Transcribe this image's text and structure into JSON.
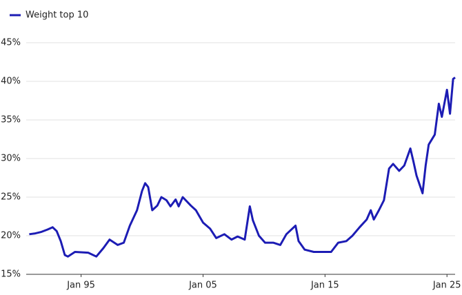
{
  "chart_data": {
    "type": "line",
    "x": [
      "1990-10",
      "1991-04",
      "1991-10",
      "1992-04",
      "1992-09",
      "1993-01",
      "1993-05",
      "1993-09",
      "1993-12",
      "1994-07",
      "1995-08",
      "1996-04",
      "1996-11",
      "1997-05",
      "1998-01",
      "1998-07",
      "1999-01",
      "1999-08",
      "2000-01",
      "2000-04",
      "2000-07",
      "2000-11",
      "2001-04",
      "2001-08",
      "2002-01",
      "2002-05",
      "2002-10",
      "2003-01",
      "2003-05",
      "2004-01",
      "2004-06",
      "2005-01",
      "2005-08",
      "2006-02",
      "2006-10",
      "2007-05",
      "2007-11",
      "2008-06",
      "2008-11",
      "2009-02",
      "2009-08",
      "2010-02",
      "2010-10",
      "2011-05",
      "2011-11",
      "2012-08",
      "2012-11",
      "2013-05",
      "2014-02",
      "2015-01",
      "2015-07",
      "2016-02",
      "2016-10",
      "2017-04",
      "2017-11",
      "2018-06",
      "2018-10",
      "2019-01",
      "2019-06",
      "2019-11",
      "2020-04",
      "2020-08",
      "2021-02",
      "2021-07",
      "2022-01",
      "2022-04",
      "2022-07",
      "2023-01",
      "2023-04",
      "2023-07",
      "2024-01",
      "2024-05",
      "2024-08",
      "2025-01",
      "2025-04",
      "2025-07",
      "2025-09"
    ],
    "series": [
      {
        "name": "Weight top 10",
        "color": "#1c1cb4",
        "values": [
          20.2,
          20.3,
          20.5,
          20.8,
          21.1,
          20.6,
          19.3,
          17.5,
          17.3,
          17.9,
          17.8,
          17.3,
          18.4,
          19.5,
          18.8,
          19.1,
          21.3,
          23.3,
          25.8,
          26.8,
          26.3,
          23.3,
          23.9,
          25.0,
          24.6,
          23.8,
          24.7,
          23.8,
          25.0,
          23.9,
          23.3,
          21.7,
          20.9,
          19.7,
          20.2,
          19.5,
          19.9,
          19.5,
          23.8,
          22.0,
          20.0,
          19.1,
          19.1,
          18.8,
          20.2,
          21.3,
          19.3,
          18.2,
          17.9,
          17.9,
          17.9,
          19.1,
          19.3,
          20.0,
          21.1,
          22.1,
          23.3,
          22.1,
          23.3,
          24.6,
          28.7,
          29.3,
          28.4,
          29.1,
          31.3,
          29.6,
          27.8,
          25.5,
          29.1,
          31.8,
          33.1,
          37.1,
          35.4,
          38.9,
          35.8,
          40.3,
          40.5
        ]
      }
    ],
    "xlim": [
      "1990-07",
      "2025-09"
    ],
    "xticks": [
      {
        "value": "1995-01",
        "label": "Jan 95"
      },
      {
        "value": "2005-01",
        "label": "Jan 05"
      },
      {
        "value": "2015-01",
        "label": "Jan 15"
      },
      {
        "value": "2025-01",
        "label": "Jan 25"
      }
    ],
    "ylim": [
      15,
      45
    ],
    "yticks": [
      {
        "value": 15,
        "label": "15%"
      },
      {
        "value": 20,
        "label": "20%"
      },
      {
        "value": 25,
        "label": "25%"
      },
      {
        "value": 30,
        "label": "30%"
      },
      {
        "value": 35,
        "label": "35%"
      },
      {
        "value": 40,
        "label": "40%"
      },
      {
        "value": 45,
        "label": "45%"
      }
    ],
    "grid": true,
    "legend": "top-left"
  }
}
